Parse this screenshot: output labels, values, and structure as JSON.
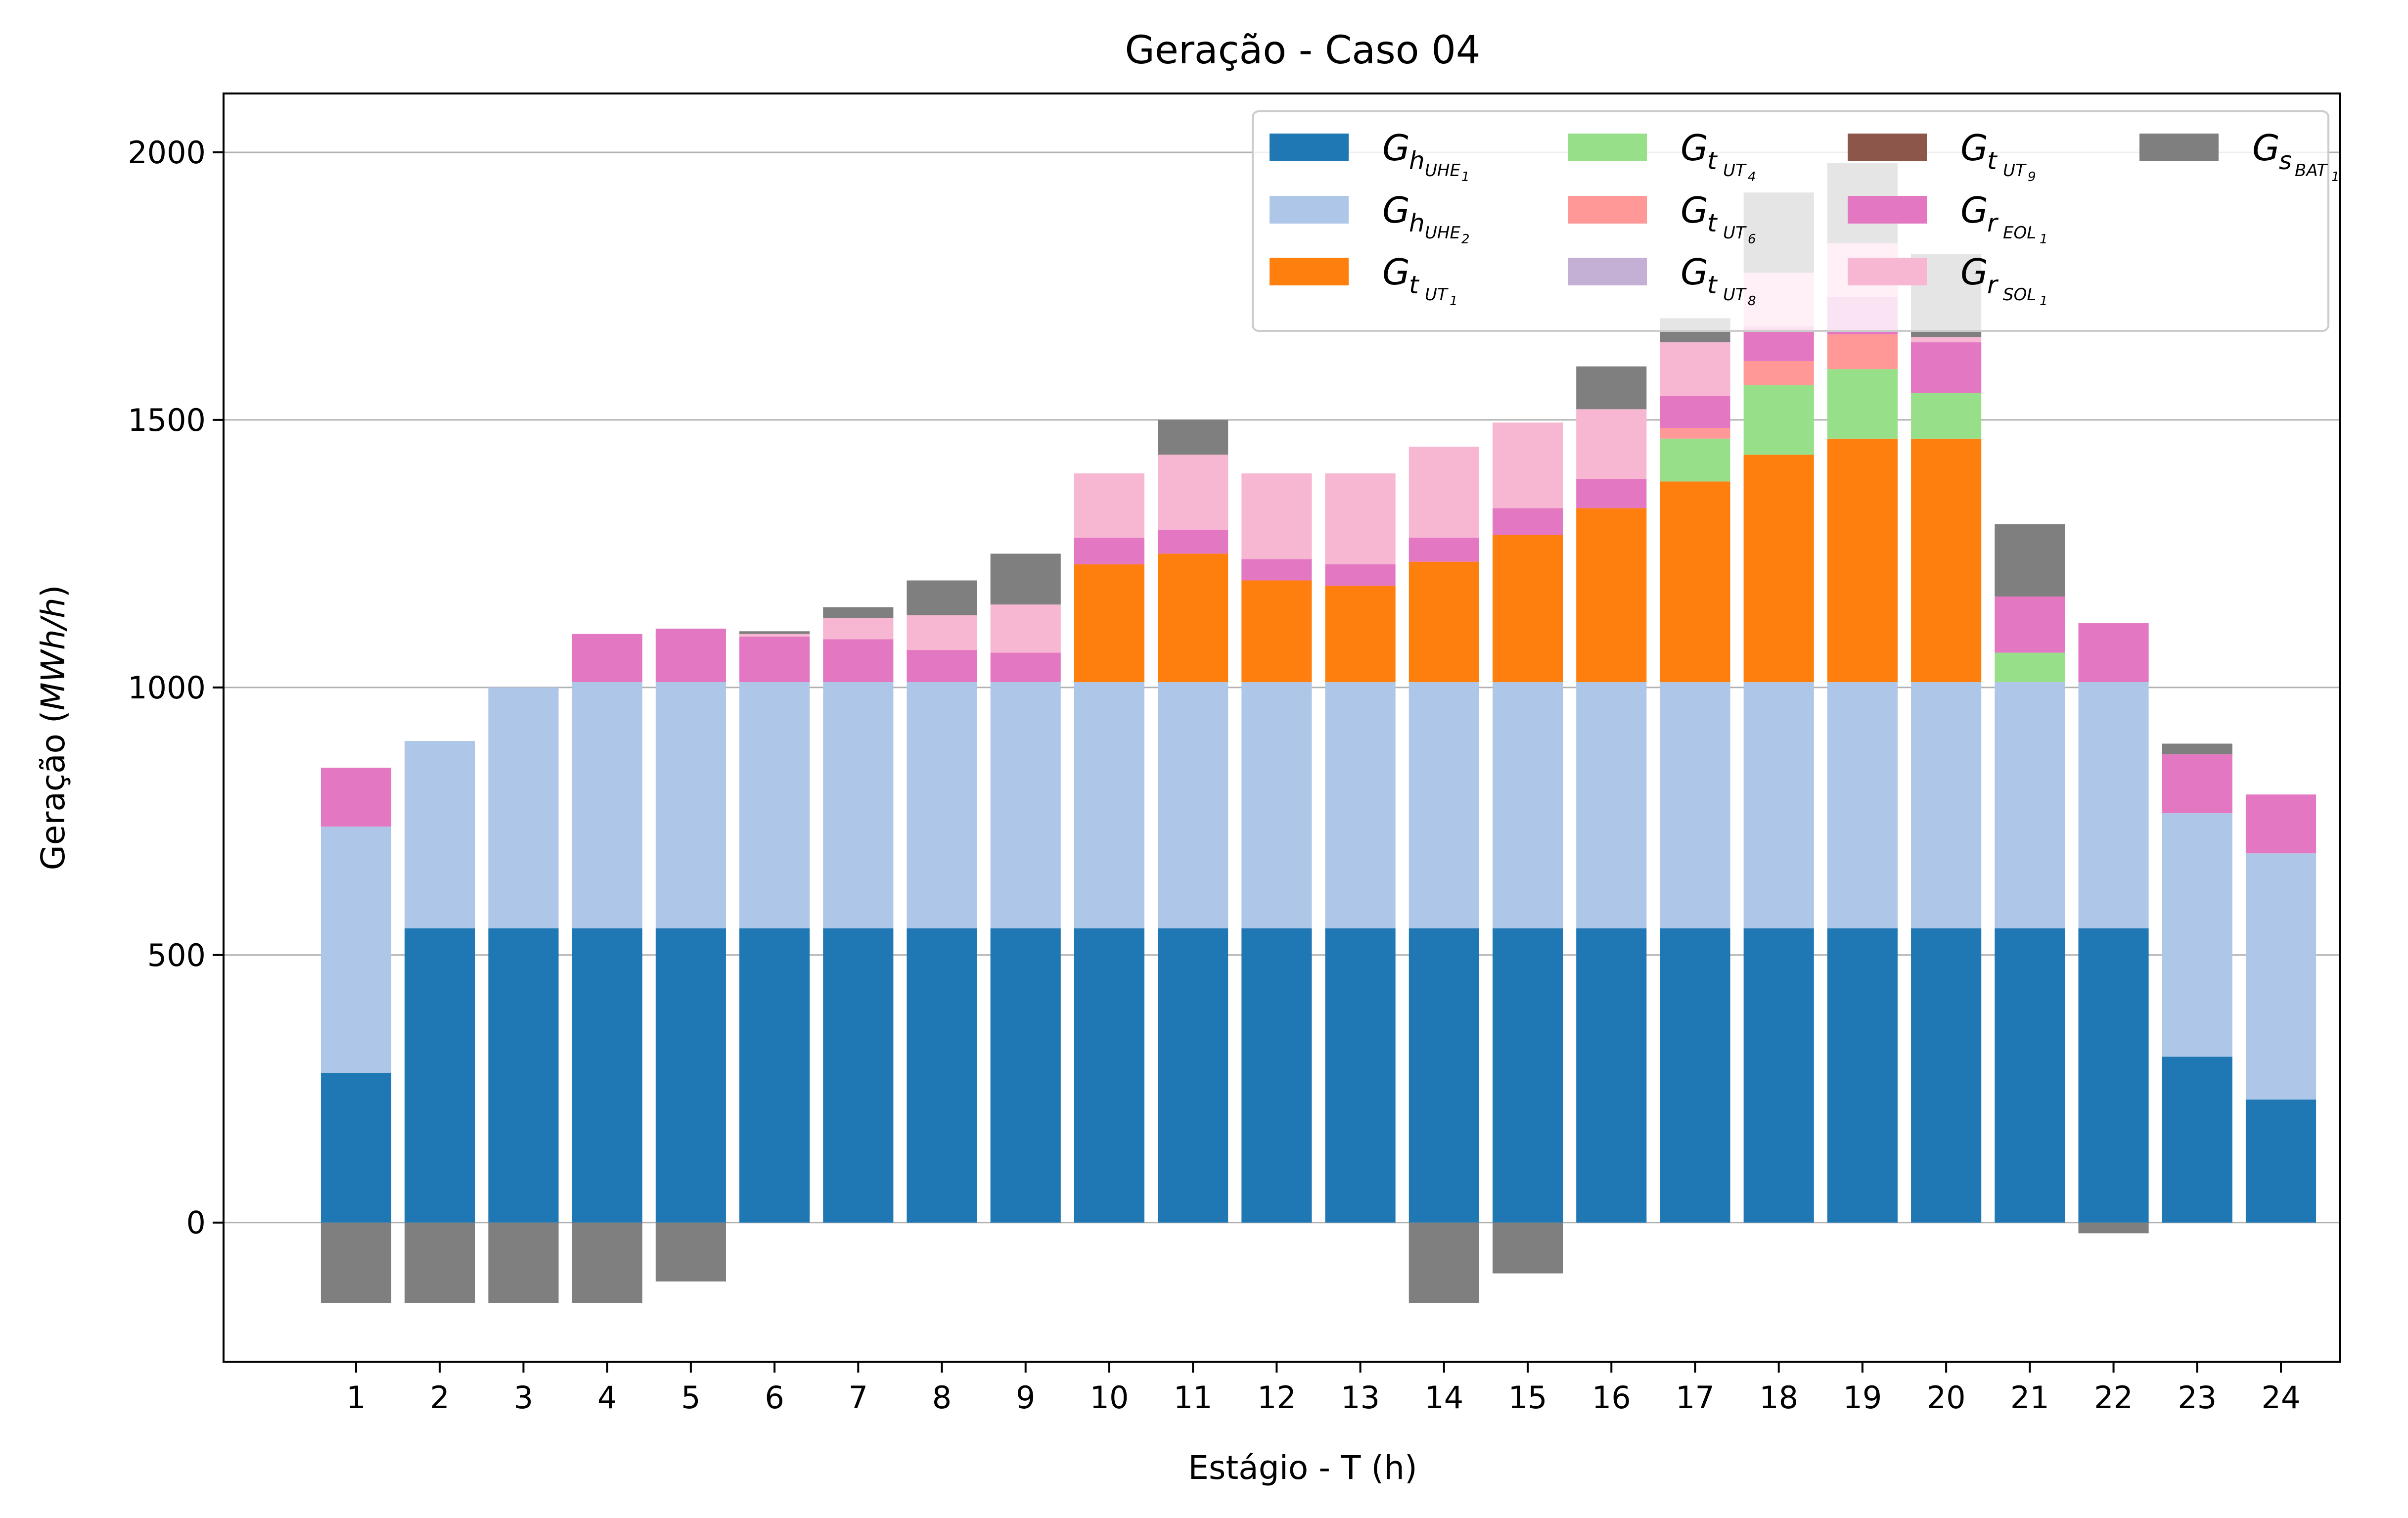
{
  "chart_data": {
    "type": "bar",
    "stacked": true,
    "title": "Geração - Caso 04",
    "xlabel": "Estágio - T (h)",
    "ylabel": "Geração",
    "ylabel_unit": "MWh/h",
    "ylim": [
      -260,
      2110
    ],
    "yticks": [
      0,
      500,
      1000,
      1500,
      2000
    ],
    "grid": "y",
    "legend_position": "top-right",
    "categories": [
      "1",
      "2",
      "3",
      "4",
      "5",
      "6",
      "7",
      "8",
      "9",
      "10",
      "11",
      "12",
      "13",
      "14",
      "15",
      "16",
      "17",
      "18",
      "19",
      "20",
      "21",
      "22",
      "23",
      "24"
    ],
    "series": [
      {
        "name": "G",
        "sub1": "h",
        "sub2": "UHE",
        "sub3": "1",
        "color": "#1f77b4",
        "values": [
          280,
          550,
          550,
          550,
          550,
          550,
          550,
          550,
          550,
          550,
          550,
          550,
          550,
          550,
          550,
          550,
          550,
          550,
          550,
          550,
          550,
          550,
          310,
          230
        ]
      },
      {
        "name": "G",
        "sub1": "h",
        "sub2": "UHE",
        "sub3": "2",
        "color": "#aec7e8",
        "values": [
          460,
          350,
          450,
          460,
          460,
          460,
          460,
          460,
          460,
          460,
          460,
          460,
          460,
          460,
          460,
          460,
          460,
          460,
          460,
          460,
          460,
          460,
          455,
          460
        ]
      },
      {
        "name": "G",
        "sub1": "t",
        "sub2": "UT",
        "sub3": "1",
        "color": "#ff7f0e",
        "values": [
          0,
          0,
          0,
          0,
          0,
          0,
          0,
          0,
          0,
          220,
          240,
          190,
          180,
          225,
          275,
          325,
          375,
          425,
          455,
          455,
          0,
          0,
          0,
          0
        ]
      },
      {
        "name": "G",
        "sub1": "t",
        "sub2": "UT",
        "sub3": "4",
        "color": "#98df8a",
        "values": [
          0,
          0,
          0,
          0,
          0,
          0,
          0,
          0,
          0,
          0,
          0,
          0,
          0,
          0,
          0,
          0,
          80,
          130,
          130,
          85,
          55,
          0,
          0,
          0
        ]
      },
      {
        "name": "G",
        "sub1": "t",
        "sub2": "UT",
        "sub3": "6",
        "color": "#ff9896",
        "values": [
          0,
          0,
          0,
          0,
          0,
          0,
          0,
          0,
          0,
          0,
          0,
          0,
          0,
          0,
          0,
          0,
          20,
          45,
          65,
          0,
          0,
          0,
          0,
          0
        ]
      },
      {
        "name": "G",
        "sub1": "t",
        "sub2": "UT",
        "sub3": "8",
        "color": "#c5b0d5",
        "values": [
          0,
          0,
          0,
          0,
          0,
          0,
          0,
          0,
          0,
          0,
          0,
          0,
          0,
          0,
          0,
          0,
          0,
          0,
          0,
          0,
          0,
          0,
          0,
          0
        ]
      },
      {
        "name": "G",
        "sub1": "t",
        "sub2": "UT",
        "sub3": "9",
        "color": "#8c564b",
        "values": [
          0,
          0,
          0,
          0,
          0,
          0,
          0,
          0,
          0,
          0,
          0,
          0,
          0,
          0,
          0,
          0,
          0,
          0,
          0,
          0,
          0,
          0,
          0,
          0
        ]
      },
      {
        "name": "G",
        "sub1": "r",
        "sub2": "EOL",
        "sub3": "1",
        "color": "#e377c2",
        "values": [
          110,
          0,
          0,
          90,
          100,
          85,
          80,
          60,
          55,
          50,
          45,
          40,
          40,
          45,
          50,
          55,
          60,
          65,
          70,
          95,
          105,
          110,
          110,
          110
        ]
      },
      {
        "name": "G",
        "sub1": "r",
        "sub2": "SOL",
        "sub3": "1",
        "color": "#f7b6d2",
        "values": [
          0,
          0,
          0,
          0,
          0,
          5,
          40,
          65,
          90,
          120,
          140,
          160,
          170,
          170,
          160,
          130,
          100,
          100,
          100,
          10,
          0,
          0,
          0,
          0
        ]
      },
      {
        "name": "G",
        "sub1": "s",
        "sub2": "BAT",
        "sub3": "1",
        "color": "#7f7f7f",
        "values": [
          -150,
          -150,
          -150,
          -150,
          -110,
          5,
          20,
          65,
          95,
          0,
          65,
          0,
          0,
          -150,
          -95,
          80,
          45,
          150,
          150,
          155,
          135,
          -20,
          20,
          0
        ]
      }
    ]
  }
}
